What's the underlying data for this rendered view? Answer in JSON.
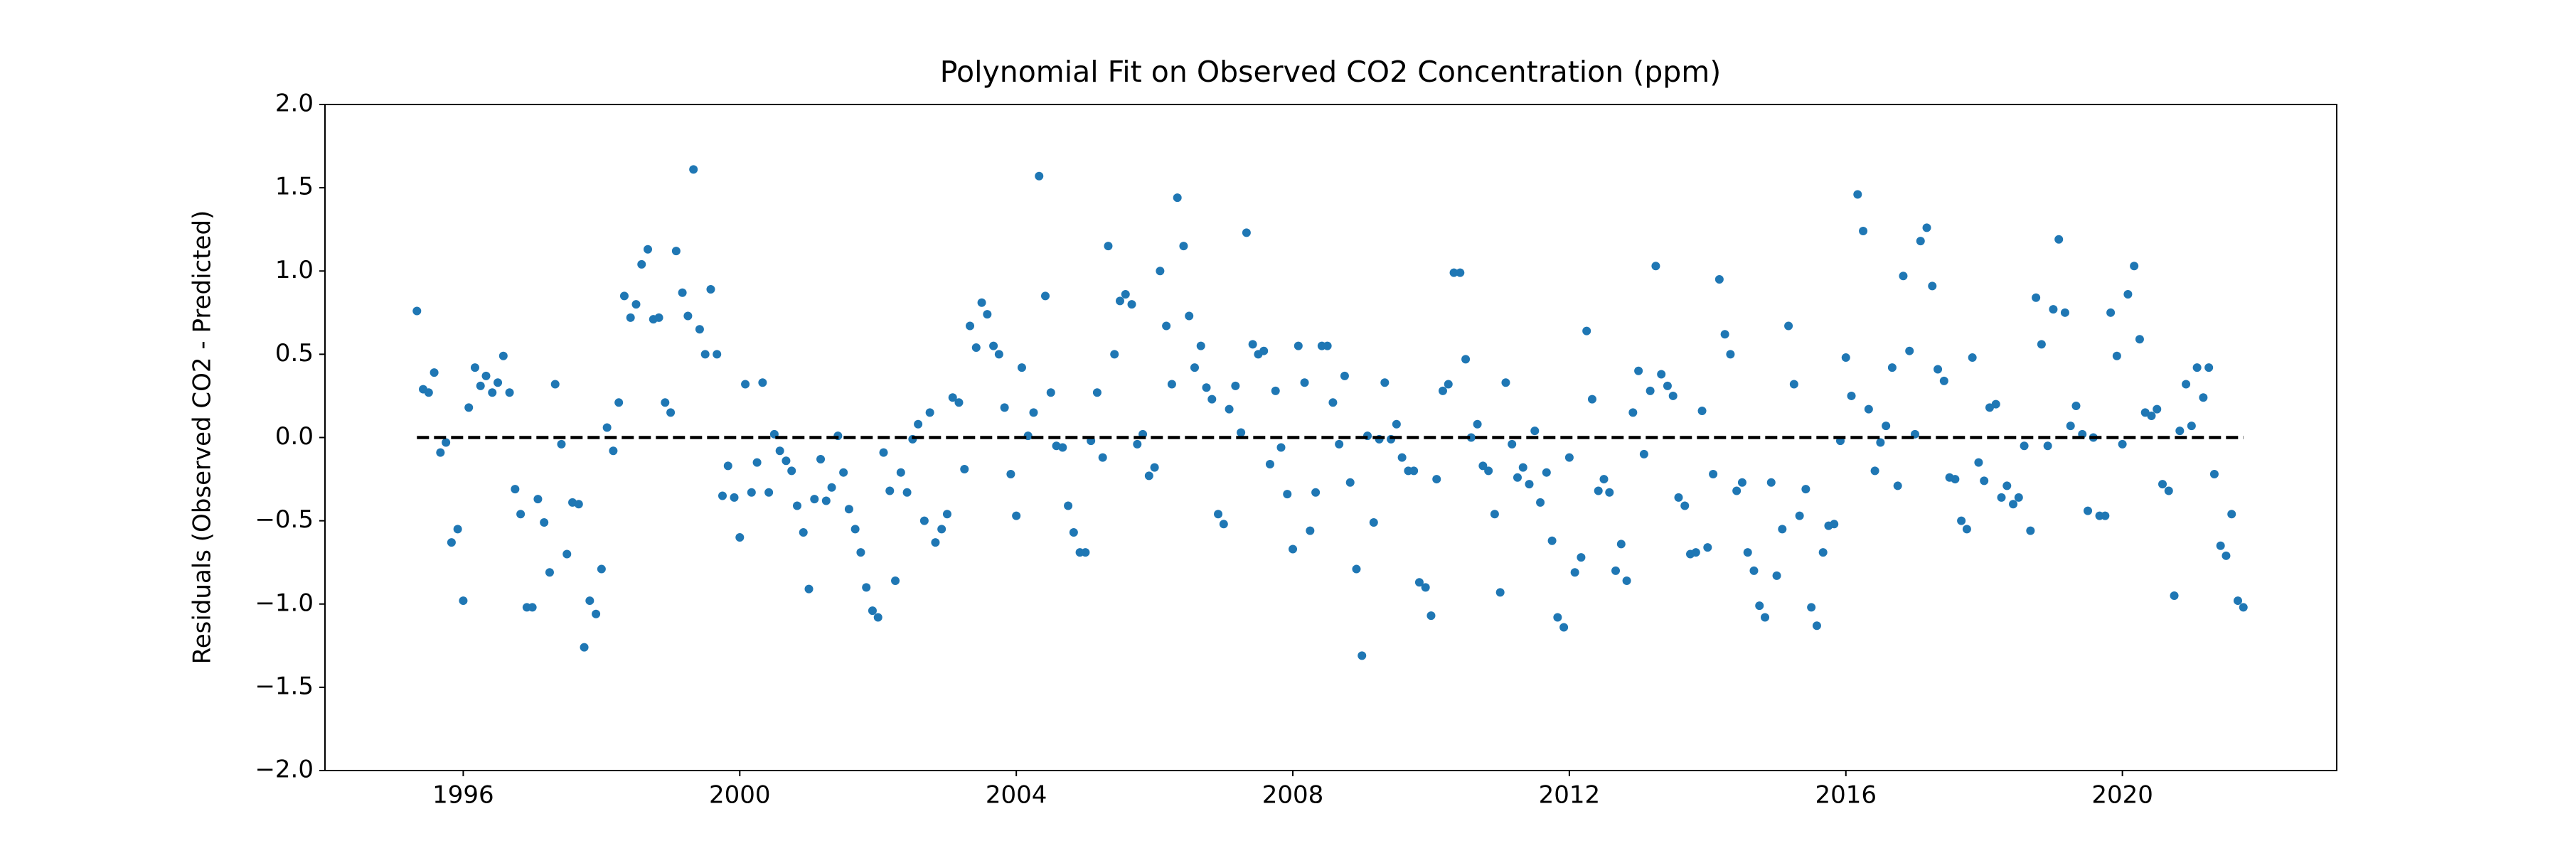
{
  "chart_data": {
    "type": "scatter",
    "title": "Polynomial Fit on Observed CO2 Concentration (ppm)",
    "ylabel": "Residuals (Observed CO2 - Predicted)",
    "color": "#1f77b4",
    "x": [
      1995.33,
      1995.42,
      1995.5,
      1995.58,
      1995.67,
      1995.75,
      1995.83,
      1995.92,
      1996,
      1996.08,
      1996.17,
      1996.25,
      1996.33,
      1996.42,
      1996.5,
      1996.58,
      1996.67,
      1996.75,
      1996.83,
      1996.92,
      1997,
      1997.08,
      1997.17,
      1997.25,
      1997.33,
      1997.42,
      1997.5,
      1997.58,
      1997.67,
      1997.75,
      1997.83,
      1997.92,
      1998,
      1998.08,
      1998.17,
      1998.25,
      1998.33,
      1998.42,
      1998.5,
      1998.58,
      1998.67,
      1998.75,
      1998.83,
      1998.92,
      1999,
      1999.08,
      1999.17,
      1999.25,
      1999.33,
      1999.42,
      1999.5,
      1999.58,
      1999.67,
      1999.75,
      1999.83,
      1999.92,
      2000,
      2000.08,
      2000.17,
      2000.25,
      2000.33,
      2000.42,
      2000.5,
      2000.58,
      2000.67,
      2000.75,
      2000.83,
      2000.92,
      2001,
      2001.08,
      2001.17,
      2001.25,
      2001.33,
      2001.42,
      2001.5,
      2001.58,
      2001.67,
      2001.75,
      2001.83,
      2001.92,
      2002,
      2002.08,
      2002.17,
      2002.25,
      2002.33,
      2002.42,
      2002.5,
      2002.58,
      2002.67,
      2002.75,
      2002.83,
      2002.92,
      2003,
      2003.08,
      2003.17,
      2003.25,
      2003.33,
      2003.42,
      2003.5,
      2003.58,
      2003.67,
      2003.75,
      2003.83,
      2003.92,
      2004,
      2004.08,
      2004.17,
      2004.25,
      2004.33,
      2004.42,
      2004.5,
      2004.58,
      2004.67,
      2004.75,
      2004.83,
      2004.92,
      2005,
      2005.08,
      2005.17,
      2005.25,
      2005.33,
      2005.42,
      2005.5,
      2005.58,
      2005.67,
      2005.75,
      2005.83,
      2005.92,
      2006,
      2006.08,
      2006.17,
      2006.25,
      2006.33,
      2006.42,
      2006.5,
      2006.58,
      2006.67,
      2006.75,
      2006.83,
      2006.92,
      2007,
      2007.08,
      2007.17,
      2007.25,
      2007.33,
      2007.42,
      2007.5,
      2007.58,
      2007.67,
      2007.75,
      2007.83,
      2007.92,
      2008,
      2008.08,
      2008.17,
      2008.25,
      2008.33,
      2008.42,
      2008.5,
      2008.58,
      2008.67,
      2008.75,
      2008.83,
      2008.92,
      2009,
      2009.08,
      2009.17,
      2009.25,
      2009.33,
      2009.42,
      2009.5,
      2009.58,
      2009.67,
      2009.75,
      2009.83,
      2009.92,
      2010,
      2010.08,
      2010.17,
      2010.25,
      2010.33,
      2010.42,
      2010.5,
      2010.58,
      2010.67,
      2010.75,
      2010.83,
      2010.92,
      2011,
      2011.08,
      2011.17,
      2011.25,
      2011.33,
      2011.42,
      2011.5,
      2011.58,
      2011.67,
      2011.75,
      2011.83,
      2011.92,
      2012,
      2012.08,
      2012.17,
      2012.25,
      2012.33,
      2012.42,
      2012.5,
      2012.58,
      2012.67,
      2012.75,
      2012.83,
      2012.92,
      2013,
      2013.08,
      2013.17,
      2013.25,
      2013.33,
      2013.42,
      2013.5,
      2013.58,
      2013.67,
      2013.75,
      2013.83,
      2013.92,
      2014,
      2014.08,
      2014.17,
      2014.25,
      2014.33,
      2014.42,
      2014.5,
      2014.58,
      2014.67,
      2014.75,
      2014.83,
      2014.92,
      2015,
      2015.08,
      2015.17,
      2015.25,
      2015.33,
      2015.42,
      2015.5,
      2015.58,
      2015.67,
      2015.75,
      2015.83,
      2015.92,
      2016,
      2016.08,
      2016.17,
      2016.25,
      2016.33,
      2016.42,
      2016.5,
      2016.58,
      2016.67,
      2016.75,
      2016.83,
      2016.92,
      2017,
      2017.08,
      2017.17,
      2017.25,
      2017.33,
      2017.42,
      2017.5,
      2017.58,
      2017.67,
      2017.75,
      2017.83,
      2017.92,
      2018,
      2018.08,
      2018.17,
      2018.25,
      2018.33,
      2018.42,
      2018.5,
      2018.58,
      2018.67,
      2018.75,
      2018.83,
      2018.92,
      2019,
      2019.08,
      2019.17,
      2019.25,
      2019.33,
      2019.42,
      2019.5,
      2019.58,
      2019.67,
      2019.75,
      2019.83,
      2019.92,
      2020,
      2020.08,
      2020.17,
      2020.25,
      2020.33,
      2020.42,
      2020.5,
      2020.58,
      2020.67,
      2020.75,
      2020.83,
      2020.92,
      2021,
      2021.08,
      2021.17,
      2021.25,
      2021.33,
      2021.42,
      2021.5,
      2021.58,
      2021.67,
      2021.75
    ],
    "y": [
      0.76,
      0.29,
      0.27,
      0.39,
      -0.09,
      -0.03,
      -0.63,
      -0.55,
      -0.98,
      0.18,
      0.42,
      0.31,
      0.37,
      0.27,
      0.33,
      0.49,
      0.27,
      -0.31,
      -0.46,
      -1.02,
      -1.02,
      -0.37,
      -0.51,
      -0.81,
      0.32,
      -0.04,
      -0.7,
      -0.39,
      -0.4,
      -1.26,
      -0.98,
      -1.06,
      -0.79,
      0.06,
      -0.08,
      0.21,
      0.85,
      0.72,
      0.8,
      1.04,
      1.13,
      0.71,
      0.72,
      0.21,
      0.15,
      1.12,
      0.87,
      0.73,
      1.61,
      0.65,
      0.5,
      0.89,
      0.5,
      -0.35,
      -0.17,
      -0.36,
      -0.6,
      0.32,
      -0.33,
      -0.15,
      0.33,
      -0.33,
      0.02,
      -0.08,
      -0.14,
      -0.2,
      -0.41,
      -0.57,
      -0.91,
      -0.37,
      -0.13,
      -0.38,
      -0.3,
      0.01,
      -0.21,
      -0.43,
      -0.55,
      -0.69,
      -0.9,
      -1.04,
      -1.08,
      -0.09,
      -0.32,
      -0.86,
      -0.21,
      -0.33,
      -0.01,
      0.08,
      -0.5,
      0.15,
      -0.63,
      -0.55,
      -0.46,
      0.24,
      0.21,
      -0.19,
      0.67,
      0.54,
      0.81,
      0.74,
      0.55,
      0.5,
      0.18,
      -0.22,
      -0.47,
      0.42,
      0.01,
      0.15,
      1.57,
      0.85,
      0.27,
      -0.05,
      -0.06,
      -0.41,
      -0.57,
      -0.69,
      -0.69,
      -0.02,
      0.27,
      -0.12,
      1.15,
      0.5,
      0.82,
      0.86,
      0.8,
      -0.04,
      0.02,
      -0.23,
      -0.18,
      1.0,
      0.67,
      0.32,
      1.44,
      1.15,
      0.73,
      0.42,
      0.55,
      0.3,
      0.23,
      -0.46,
      -0.52,
      0.17,
      0.31,
      0.03,
      1.23,
      0.56,
      0.5,
      0.52,
      -0.16,
      0.28,
      -0.06,
      -0.34,
      -0.67,
      0.55,
      0.33,
      -0.56,
      -0.33,
      0.55,
      0.55,
      0.21,
      -0.04,
      0.37,
      -0.27,
      -0.79,
      -1.31,
      0.01,
      -0.51,
      -0.01,
      0.33,
      -0.01,
      0.08,
      -0.12,
      -0.2,
      -0.2,
      -0.87,
      -0.9,
      -1.07,
      -0.25,
      0.28,
      0.32,
      0.99,
      0.99,
      0.47,
      0.0,
      0.08,
      -0.17,
      -0.2,
      -0.46,
      -0.93,
      0.33,
      -0.04,
      -0.24,
      -0.18,
      -0.28,
      0.04,
      -0.39,
      -0.21,
      -0.62,
      -1.08,
      -1.14,
      -0.12,
      -0.81,
      -0.72,
      0.64,
      0.23,
      -0.32,
      -0.25,
      -0.33,
      -0.8,
      -0.64,
      -0.86,
      0.15,
      0.4,
      -0.1,
      0.28,
      1.03,
      0.38,
      0.31,
      0.25,
      -0.36,
      -0.41,
      -0.7,
      -0.69,
      0.16,
      -0.66,
      -0.22,
      0.95,
      0.62,
      0.5,
      -0.32,
      -0.27,
      -0.69,
      -0.8,
      -1.01,
      -1.08,
      -0.27,
      -0.83,
      -0.55,
      0.67,
      0.32,
      -0.47,
      -0.31,
      -1.02,
      -1.13,
      -0.69,
      -0.53,
      -0.52,
      -0.02,
      0.48,
      0.25,
      1.46,
      1.24,
      0.17,
      -0.2,
      -0.03,
      0.07,
      0.42,
      -0.29,
      0.97,
      0.52,
      0.02,
      1.18,
      1.26,
      0.91,
      0.41,
      0.34,
      -0.24,
      -0.25,
      -0.5,
      -0.55,
      0.48,
      -0.15,
      -0.26,
      0.18,
      0.2,
      -0.36,
      -0.29,
      -0.4,
      -0.36,
      -0.05,
      -0.56,
      0.84,
      0.56,
      -0.05,
      0.77,
      1.19,
      0.75,
      0.07,
      0.19,
      0.02,
      -0.44,
      0.0,
      -0.47,
      -0.47,
      0.75,
      0.49,
      -0.04,
      0.86,
      1.03,
      0.59,
      0.15,
      0.13,
      0.17,
      -0.28,
      -0.32,
      -0.95,
      0.04,
      0.32,
      0.07,
      0.42,
      0.24,
      0.42,
      -0.22,
      -0.65,
      -0.71,
      -0.46,
      -0.98,
      -1.02
    ],
    "fit": {
      "x": [
        1995.33,
        2021.75
      ],
      "y": [
        0,
        0
      ],
      "color": "#000000",
      "dashed": true
    },
    "xlim": [
      1994.0,
      2023.1
    ],
    "ylim": [
      -2,
      2
    ],
    "xticks": [
      1996,
      2000,
      2004,
      2008,
      2012,
      2016,
      2020
    ],
    "yticks": [
      {
        "value": -2,
        "label": "−2.0"
      },
      {
        "value": -1.5,
        "label": "−1.5"
      },
      {
        "value": -1,
        "label": "−1.0"
      },
      {
        "value": -0.5,
        "label": "−0.5"
      },
      {
        "value": 0,
        "label": "0.0"
      },
      {
        "value": 0.5,
        "label": "0.5"
      },
      {
        "value": 1,
        "label": "1.0"
      },
      {
        "value": 1.5,
        "label": "1.5"
      },
      {
        "value": 2,
        "label": "2.0"
      }
    ],
    "grid": false
  }
}
